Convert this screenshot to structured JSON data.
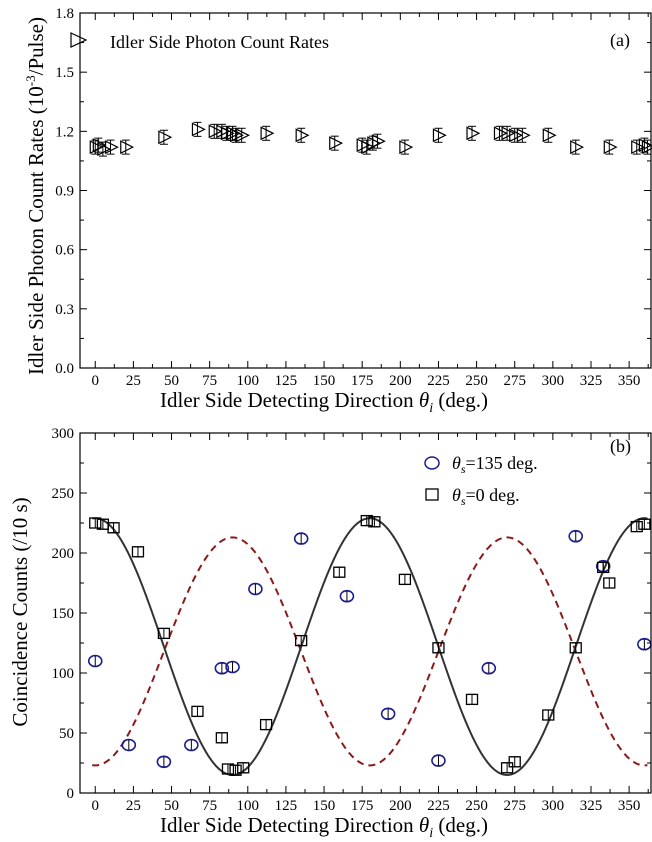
{
  "chart_data": [
    {
      "type": "scatter",
      "panel": "(a)",
      "xlabel_main": "Idler Side Detecting Direction ",
      "xlabel_symbol": "θ",
      "xlabel_sub": "i",
      "xlabel_unit": " (deg.)",
      "ylabel_main": "Idler Side Photon Count Rates (10",
      "ylabel_sup": "-3",
      "ylabel_unit": "/Pulse)",
      "xlim": [
        -10,
        365
      ],
      "ylim": [
        0.0,
        1.8
      ],
      "xticks": [
        "0",
        "25",
        "50",
        "75",
        "100",
        "125",
        "150",
        "175",
        "200",
        "225",
        "250",
        "275",
        "300",
        "325",
        "350"
      ],
      "yticks": [
        "0.0",
        "0.3",
        "0.6",
        "0.9",
        "1.2",
        "1.5",
        "1.8"
      ],
      "grid": false,
      "legend_position": "top-left",
      "series": [
        {
          "name": "Idler Side Photon Count Rates",
          "marker": "triangle-right",
          "color": "#000000",
          "points": [
            [
              0,
              1.12
            ],
            [
              2,
              1.13
            ],
            [
              5,
              1.11
            ],
            [
              10,
              1.12
            ],
            [
              20,
              1.12
            ],
            [
              45,
              1.17
            ],
            [
              67,
              1.21
            ],
            [
              78,
              1.2
            ],
            [
              83,
              1.2
            ],
            [
              86,
              1.19
            ],
            [
              90,
              1.19
            ],
            [
              92,
              1.18
            ],
            [
              96,
              1.18
            ],
            [
              112,
              1.19
            ],
            [
              135,
              1.18
            ],
            [
              157,
              1.14
            ],
            [
              175,
              1.13
            ],
            [
              178,
              1.12
            ],
            [
              182,
              1.14
            ],
            [
              185,
              1.15
            ],
            [
              203,
              1.12
            ],
            [
              225,
              1.18
            ],
            [
              247,
              1.19
            ],
            [
              265,
              1.19
            ],
            [
              270,
              1.19
            ],
            [
              275,
              1.18
            ],
            [
              280,
              1.18
            ],
            [
              297,
              1.18
            ],
            [
              315,
              1.12
            ],
            [
              337,
              1.12
            ],
            [
              355,
              1.12
            ],
            [
              360,
              1.13
            ],
            [
              362,
              1.12
            ]
          ]
        }
      ]
    },
    {
      "type": "scatter",
      "panel": "(b)",
      "xlabel_main": "Idler Side Detecting Direction ",
      "xlabel_symbol": "θ",
      "xlabel_sub": "i",
      "xlabel_unit": " (deg.)",
      "ylabel": "Coincidence Counts (/10 s)",
      "xlim": [
        -10,
        365
      ],
      "ylim": [
        0,
        300
      ],
      "xticks": [
        "0",
        "25",
        "50",
        "75",
        "100",
        "125",
        "150",
        "175",
        "200",
        "225",
        "250",
        "275",
        "300",
        "325",
        "350"
      ],
      "yticks": [
        "0",
        "50",
        "100",
        "150",
        "200",
        "250",
        "300"
      ],
      "grid": false,
      "legend_position": "top-right",
      "series": [
        {
          "name_symbol": "θ",
          "name_sub": "s",
          "name_rest": "=135 deg.",
          "marker": "circle",
          "color": "#1c1c8f",
          "points": [
            [
              0,
              110
            ],
            [
              22,
              40
            ],
            [
              45,
              26
            ],
            [
              63,
              40
            ],
            [
              83,
              104
            ],
            [
              90,
              105
            ],
            [
              105,
              170
            ],
            [
              135,
              212
            ],
            [
              165,
              164
            ],
            [
              192,
              66
            ],
            [
              225,
              27
            ],
            [
              258,
              104
            ],
            [
              315,
              214
            ],
            [
              333,
              189
            ],
            [
              360,
              124
            ]
          ],
          "fit": {
            "style": "dashed",
            "color": "#8b1a1a",
            "mean": 118,
            "amplitude": 95,
            "phase_deg": 270
          }
        },
        {
          "name_symbol": "θ",
          "name_sub": "s",
          "name_rest": "=0 deg.",
          "marker": "square",
          "color": "#000000",
          "points": [
            [
              0,
              225
            ],
            [
              5,
              224
            ],
            [
              12,
              221
            ],
            [
              28,
              201
            ],
            [
              45,
              133
            ],
            [
              67,
              68
            ],
            [
              83,
              46
            ],
            [
              87,
              20
            ],
            [
              92,
              19
            ],
            [
              97,
              21
            ],
            [
              112,
              57
            ],
            [
              135,
              127
            ],
            [
              160,
              184
            ],
            [
              178,
              227
            ],
            [
              183,
              226
            ],
            [
              203,
              178
            ],
            [
              225,
              121
            ],
            [
              247,
              78
            ],
            [
              270,
              21
            ],
            [
              275,
              26
            ],
            [
              297,
              65
            ],
            [
              315,
              121
            ],
            [
              333,
              188
            ],
            [
              337,
              175
            ],
            [
              355,
              222
            ],
            [
              360,
              224
            ]
          ],
          "fit": {
            "style": "solid",
            "color": "#333333",
            "mean": 122,
            "amplitude": 107,
            "phase_deg": 0
          }
        }
      ]
    }
  ]
}
